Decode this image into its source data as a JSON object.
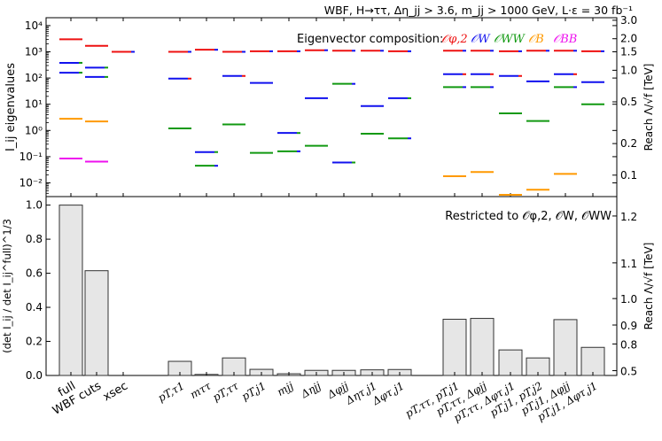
{
  "chart_data": [
    {
      "type": "scatter",
      "panel": "top",
      "title": "WBF, H→ττ, Δη_jj > 3.6, m_jj > 1000 GeV, L·ε = 30 fb⁻¹",
      "ylabel": "I_ij eigenvalues",
      "ylabel_right": "Reach Λ/√f [TeV]",
      "yscale": "log",
      "ylim": [
        0.003,
        20000
      ],
      "yticks": [
        "10⁻²",
        "10⁻¹",
        "10⁰",
        "10¹",
        "10²",
        "10³",
        "10⁴"
      ],
      "right_ticks": [
        "0.1",
        "0.2",
        "0.5",
        "1.0",
        "1.5",
        "2.0",
        "3.0"
      ],
      "legend_title": "Eigenvector composition:",
      "legend": [
        {
          "label": "𝒪φ,2",
          "color": "#ee1111"
        },
        {
          "label": "𝒪W",
          "color": "#1111ee"
        },
        {
          "label": "𝒪WW",
          "color": "#119911"
        },
        {
          "label": "𝒪B",
          "color": "#ff9900"
        },
        {
          "label": "𝒪BB",
          "color": "#ee11ee"
        }
      ],
      "series": [
        {
          "name": "full",
          "eigenvalues": [
            {
              "value": 3000,
              "colors": [
                "#ee1111"
              ]
            },
            {
              "value": 380,
              "colors": [
                "#1111ee",
                "#119911"
              ]
            },
            {
              "value": 160,
              "colors": [
                "#1111ee",
                "#119911"
              ]
            },
            {
              "value": 2.8,
              "colors": [
                "#ff9900"
              ]
            },
            {
              "value": 0.085,
              "colors": [
                "#ee11ee"
              ]
            }
          ]
        },
        {
          "name": "WBF cuts",
          "eigenvalues": [
            {
              "value": 1700,
              "colors": [
                "#ee1111"
              ]
            },
            {
              "value": 250,
              "colors": [
                "#1111ee",
                "#119911"
              ]
            },
            {
              "value": 110,
              "colors": [
                "#1111ee",
                "#119911"
              ]
            },
            {
              "value": 2.2,
              "colors": [
                "#ff9900"
              ]
            },
            {
              "value": 0.065,
              "colors": [
                "#ee11ee"
              ]
            }
          ]
        },
        {
          "name": "xsec",
          "eigenvalues": [
            {
              "value": 1000,
              "colors": [
                "#ee1111",
                "#1111ee"
              ]
            }
          ]
        },
        {
          "name": "pT,τ1",
          "eigenvalues": [
            {
              "value": 1000,
              "colors": [
                "#ee1111",
                "#1111ee"
              ]
            },
            {
              "value": 95,
              "colors": [
                "#1111ee",
                "#ee1111"
              ]
            },
            {
              "value": 1.2,
              "colors": [
                "#119911"
              ]
            }
          ]
        },
        {
          "name": "mττ",
          "eigenvalues": [
            {
              "value": 1200,
              "colors": [
                "#ee1111",
                "#1111ee"
              ]
            },
            {
              "value": 0.15,
              "colors": [
                "#1111ee",
                "#119911"
              ]
            },
            {
              "value": 0.045,
              "colors": [
                "#119911",
                "#1111ee"
              ]
            }
          ]
        },
        {
          "name": "pT,ττ",
          "eigenvalues": [
            {
              "value": 1000,
              "colors": [
                "#ee1111",
                "#1111ee"
              ]
            },
            {
              "value": 120,
              "colors": [
                "#1111ee",
                "#ee1111"
              ]
            },
            {
              "value": 1.7,
              "colors": [
                "#119911"
              ]
            }
          ]
        },
        {
          "name": "pT,j1",
          "eigenvalues": [
            {
              "value": 1050,
              "colors": [
                "#ee1111",
                "#1111ee"
              ]
            },
            {
              "value": 65,
              "colors": [
                "#1111ee"
              ]
            },
            {
              "value": 0.14,
              "colors": [
                "#119911"
              ]
            }
          ]
        },
        {
          "name": "mjj",
          "eigenvalues": [
            {
              "value": 1050,
              "colors": [
                "#ee1111",
                "#1111ee"
              ]
            },
            {
              "value": 0.8,
              "colors": [
                "#1111ee",
                "#119911"
              ]
            },
            {
              "value": 0.16,
              "colors": [
                "#119911",
                "#1111ee"
              ]
            }
          ]
        },
        {
          "name": "Δηjj",
          "eigenvalues": [
            {
              "value": 1150,
              "colors": [
                "#ee1111",
                "#1111ee"
              ]
            },
            {
              "value": 17,
              "colors": [
                "#1111ee"
              ]
            },
            {
              "value": 0.26,
              "colors": [
                "#119911"
              ]
            }
          ]
        },
        {
          "name": "Δφjj",
          "eigenvalues": [
            {
              "value": 1100,
              "colors": [
                "#ee1111",
                "#1111ee"
              ]
            },
            {
              "value": 60,
              "colors": [
                "#119911",
                "#1111ee"
              ]
            },
            {
              "value": 0.06,
              "colors": [
                "#1111ee",
                "#119911"
              ]
            }
          ]
        },
        {
          "name": "Δητ,j1",
          "eigenvalues": [
            {
              "value": 1100,
              "colors": [
                "#ee1111",
                "#1111ee"
              ]
            },
            {
              "value": 8.5,
              "colors": [
                "#1111ee"
              ]
            },
            {
              "value": 0.75,
              "colors": [
                "#119911"
              ]
            }
          ]
        },
        {
          "name": "Δφτ,j1",
          "eigenvalues": [
            {
              "value": 1050,
              "colors": [
                "#ee1111",
                "#1111ee"
              ]
            },
            {
              "value": 17,
              "colors": [
                "#1111ee",
                "#119911"
              ]
            },
            {
              "value": 0.5,
              "colors": [
                "#119911",
                "#1111ee"
              ]
            }
          ]
        },
        {
          "name": "pT,ττ, pT,j1",
          "eigenvalues": [
            {
              "value": 1100,
              "colors": [
                "#ee1111",
                "#1111ee"
              ]
            },
            {
              "value": 140,
              "colors": [
                "#1111ee",
                "#ee1111"
              ]
            },
            {
              "value": 45,
              "colors": [
                "#119911",
                "#1111ee"
              ]
            },
            {
              "value": 0.018,
              "colors": [
                "#ff9900"
              ]
            }
          ]
        },
        {
          "name": "pT,ττ, Δφjj",
          "eigenvalues": [
            {
              "value": 1100,
              "colors": [
                "#ee1111",
                "#1111ee"
              ]
            },
            {
              "value": 140,
              "colors": [
                "#1111ee",
                "#ee1111"
              ]
            },
            {
              "value": 45,
              "colors": [
                "#119911",
                "#1111ee"
              ]
            },
            {
              "value": 0.026,
              "colors": [
                "#ff9900"
              ]
            }
          ]
        },
        {
          "name": "pT,ττ, Δφτ,j1",
          "eigenvalues": [
            {
              "value": 1050,
              "colors": [
                "#ee1111",
                "#1111ee"
              ]
            },
            {
              "value": 120,
              "colors": [
                "#1111ee",
                "#ee1111"
              ]
            },
            {
              "value": 4.5,
              "colors": [
                "#119911"
              ]
            },
            {
              "value": 0.0035,
              "colors": [
                "#ff9900"
              ]
            }
          ]
        },
        {
          "name": "pT,j1, pT,j2",
          "eigenvalues": [
            {
              "value": 1100,
              "colors": [
                "#ee1111",
                "#1111ee"
              ]
            },
            {
              "value": 75,
              "colors": [
                "#1111ee"
              ]
            },
            {
              "value": 2.3,
              "colors": [
                "#119911"
              ]
            },
            {
              "value": 0.0055,
              "colors": [
                "#ff9900"
              ]
            }
          ]
        },
        {
          "name": "pT,j1, Δφjj",
          "eigenvalues": [
            {
              "value": 1100,
              "colors": [
                "#ee1111",
                "#1111ee"
              ]
            },
            {
              "value": 140,
              "colors": [
                "#1111ee",
                "#ee1111"
              ]
            },
            {
              "value": 45,
              "colors": [
                "#119911",
                "#1111ee"
              ]
            },
            {
              "value": 0.022,
              "colors": [
                "#ff9900"
              ]
            }
          ]
        },
        {
          "name": "pT,j1, Δφτ,j1",
          "eigenvalues": [
            {
              "value": 1050,
              "colors": [
                "#ee1111",
                "#1111ee"
              ]
            },
            {
              "value": 70,
              "colors": [
                "#1111ee"
              ]
            },
            {
              "value": 10,
              "colors": [
                "#119911"
              ]
            }
          ]
        }
      ]
    },
    {
      "type": "bar",
      "panel": "bottom",
      "annotation": "Restricted to 𝒪φ,2, 𝒪W, 𝒪WW",
      "ylabel": "(det I_ij / det I_ij^full)^1/3",
      "ylabel_right": "Reach Λ/√f [TeV]",
      "ylim": [
        0,
        1.05
      ],
      "yticks": [
        "0.0",
        "0.2",
        "0.4",
        "0.6",
        "0.8",
        "1.0"
      ],
      "right_ticks": [
        "0.5",
        "0.8",
        "0.9",
        "1.0",
        "1.1",
        "1.2"
      ],
      "categories": [
        "full",
        "WBF cuts",
        "xsec",
        "pT,τ1",
        "mττ",
        "pT,ττ",
        "pT,j1",
        "mjj",
        "Δηjj",
        "Δφjj",
        "Δητ,j1",
        "Δφτ,j1",
        "pT,ττ, pT,j1",
        "pT,ττ, Δφjj",
        "pT,ττ, Δφτ,j1",
        "pT,j1, pT,j2",
        "pT,j1, Δφjj",
        "pT,j1, Δφτ,j1"
      ],
      "values": [
        1.0,
        0.615,
        0.0,
        0.083,
        0.006,
        0.103,
        0.036,
        0.01,
        0.03,
        0.03,
        0.033,
        0.035,
        0.33,
        0.335,
        0.15,
        0.103,
        0.328,
        0.165
      ]
    }
  ]
}
